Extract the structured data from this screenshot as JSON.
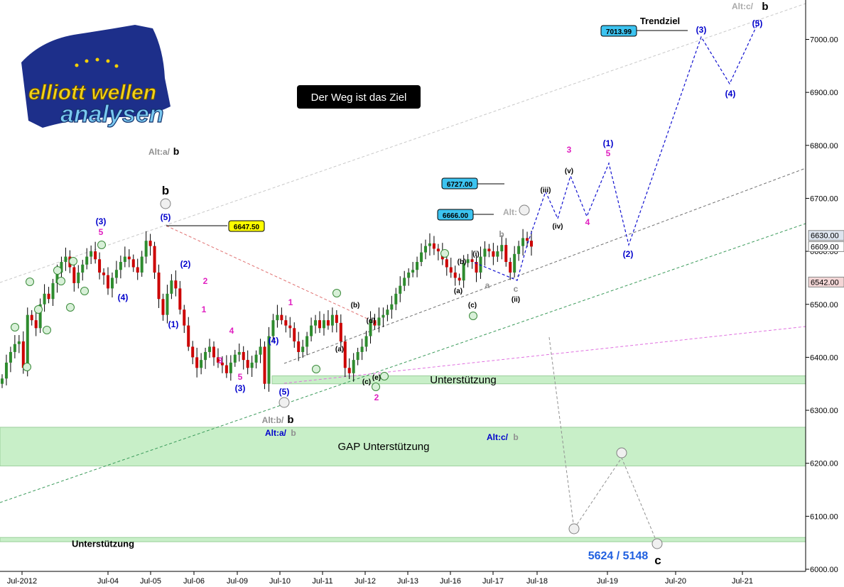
{
  "logo": {
    "line1": "elliott wellen",
    "line2": "analysen"
  },
  "headline": "Der Weg ist das Ziel",
  "chart_data": {
    "type": "candlestick",
    "y_axis": {
      "ticks": [
        6000,
        6100,
        6200,
        6300,
        6400,
        6500,
        6600,
        6700,
        6800,
        6900,
        7000
      ],
      "tick_labels": [
        "6000.00",
        "6100.00",
        "6200.00",
        "6300.00",
        "6400.00",
        "6500.00",
        "6600.00",
        "6700.00",
        "6800.00",
        "6900.00",
        "7000.00"
      ],
      "range": [
        5997,
        7070
      ]
    },
    "x_axis": {
      "ticks": [
        "Jul-2012",
        "Jul-04",
        "Jul-05",
        "Jul-06",
        "Jul-09",
        "Jul-10",
        "Jul-11",
        "Jul-12",
        "Jul-13",
        "Jul-16",
        "Jul-17",
        "Jul-18",
        "Jul-19",
        "Jul-20",
        "Jul-21"
      ]
    },
    "price_tags": [
      {
        "value": 6630.0,
        "text": "6630.00",
        "color": "#dde4ee"
      },
      {
        "value": 6609.0,
        "text": "6609.00",
        "color": "#ffffff"
      },
      {
        "value": 6542.0,
        "text": "6542.00",
        "color": "#f3d6d6"
      }
    ],
    "level_boxes": [
      {
        "text": "6647.50",
        "color": "#ffff00"
      },
      {
        "text": "6727.00",
        "color": "#3cc3f0"
      },
      {
        "text": "6666.00",
        "color": "#3cc3f0"
      },
      {
        "text": "7013.99",
        "color": "#3cc3f0"
      }
    ],
    "zones": [
      {
        "label": "Unterstützung",
        "from": 6350,
        "to": 6365
      },
      {
        "label": "GAP Unterstützung",
        "from": 6195,
        "to": 6268
      },
      {
        "label": "Unterstützung",
        "from": 6053,
        "to": 6060
      }
    ],
    "annotations": {
      "trendziel": "Trendziel",
      "target_range": "5624 / 5148",
      "alt_c_b": "Alt:c/",
      "alt_a_b_top": "Alt:a/",
      "alt_b_b": "Alt:b/",
      "alt_a_b_blue": "Alt:a/",
      "alt_c_b_mid": "Alt:c/",
      "alt_2": "Alt:",
      "b": "b",
      "c": "c"
    },
    "wave_labels_text": [
      "(3)",
      "5",
      "(5)",
      "(4)",
      "(2)",
      "2",
      "1",
      "(1)",
      "3",
      "4",
      "(3)",
      "5",
      "(4)",
      "1",
      "(5)",
      "(b)",
      "(a)",
      "(d)",
      "(c)",
      "(e)",
      "2",
      "(i)",
      "(b)",
      "(a)",
      "(c)",
      "b",
      "a",
      "c",
      "(ii)",
      "(iii)",
      "(iv)",
      "(v)",
      "3",
      "4",
      "(1)",
      "5",
      "(2)",
      "(3)",
      "(4)",
      "(5)"
    ],
    "colors": {
      "up": "#2e8b2e",
      "down": "#cc0000",
      "projection": "#1010d0",
      "alt_projection": "#909090",
      "gap_zone": "#c8efc8"
    },
    "closes": [
      6360,
      6390,
      6410,
      6425,
      6430,
      6380,
      6480,
      6470,
      6455,
      6500,
      6520,
      6510,
      6540,
      6560,
      6580,
      6590,
      6570,
      6540,
      6560,
      6575,
      6590,
      6600,
      6585,
      6560,
      6555,
      6530,
      6550,
      6565,
      6580,
      6590,
      6585,
      6570,
      6560,
      6590,
      6620,
      6610,
      6560,
      6510,
      6480,
      6520,
      6545,
      6530,
      6490,
      6460,
      6420,
      6400,
      6380,
      6395,
      6410,
      6420,
      6400,
      6390,
      6385,
      6370,
      6390,
      6405,
      6410,
      6395,
      6380,
      6390,
      6405,
      6420,
      6350,
      6440,
      6470,
      6480,
      6470,
      6460,
      6455,
      6430,
      6410,
      6420,
      6440,
      6460,
      6470,
      6455,
      6470,
      6460,
      6480,
      6465,
      6430,
      6380,
      6370,
      6395,
      6410,
      6420,
      6440,
      6470,
      6460,
      6475,
      6480,
      6490,
      6500,
      6520,
      6535,
      6550,
      6560,
      6565,
      6580,
      6598,
      6610,
      6615,
      6605,
      6600,
      6585,
      6570,
      6560,
      6550,
      6545,
      6578,
      6585,
      6580,
      6560,
      6590,
      6605,
      6600,
      6590,
      6600,
      6612,
      6580,
      6560,
      6595,
      6610,
      6625,
      6620,
      6609
    ]
  }
}
